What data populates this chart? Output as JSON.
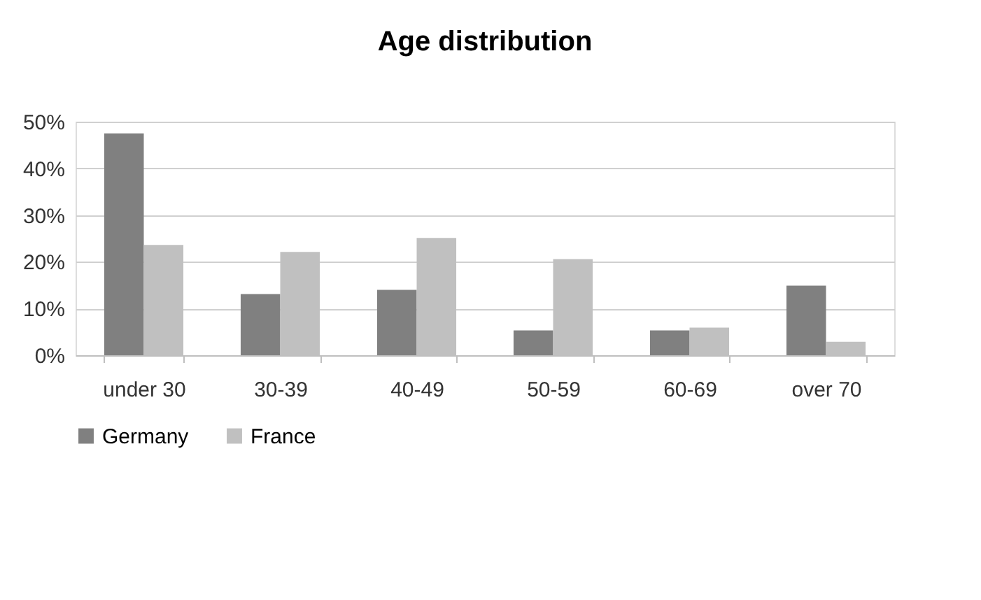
{
  "chart_data": {
    "type": "bar",
    "title": "Age distribution",
    "categories": [
      "under 30",
      "30-39",
      "40-49",
      "50-59",
      "60-69",
      "over 70"
    ],
    "series": [
      {
        "name": "Germany",
        "color": "#808080",
        "values": [
          47.5,
          13.1,
          14.0,
          5.3,
          5.3,
          14.9
        ]
      },
      {
        "name": "France",
        "color": "#c0c0c0",
        "values": [
          23.6,
          22.1,
          25.1,
          20.6,
          5.9,
          2.9
        ]
      }
    ],
    "ylim": [
      0,
      50
    ],
    "yticks": [
      {
        "value": 0,
        "label": "0%"
      },
      {
        "value": 10,
        "label": "10%"
      },
      {
        "value": 20,
        "label": "20%"
      },
      {
        "value": 30,
        "label": "30%"
      },
      {
        "value": 40,
        "label": "40%"
      },
      {
        "value": 50,
        "label": "50%"
      }
    ],
    "grid": "y",
    "legend": "bottom"
  }
}
